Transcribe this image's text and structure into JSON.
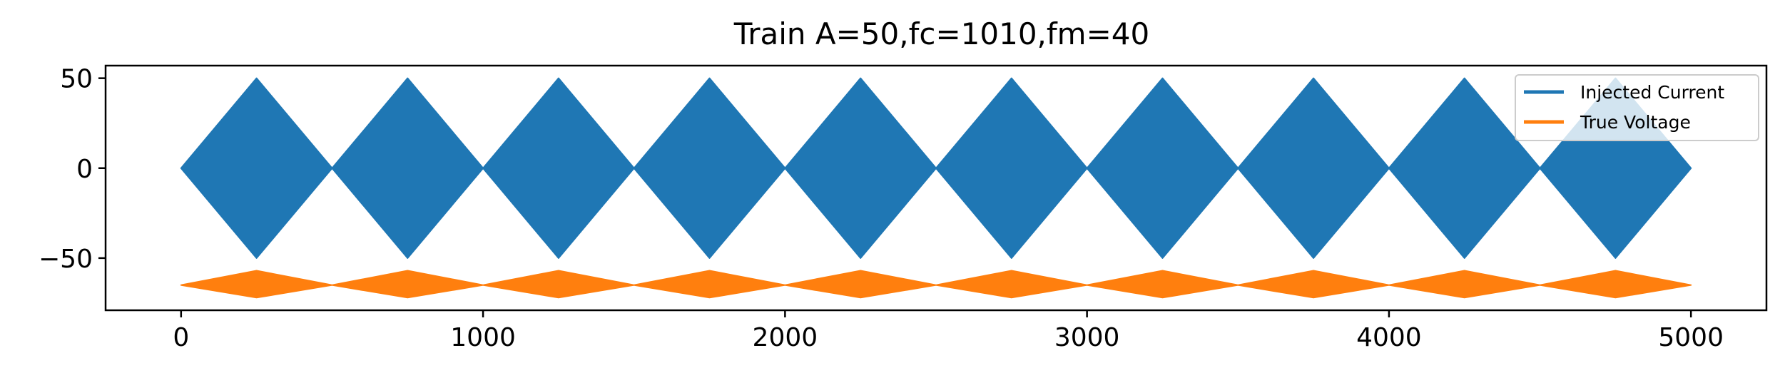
{
  "chart_data": {
    "type": "area",
    "title": "Train A=50,fc=1010,fm=40",
    "xlabel": "",
    "ylabel": "",
    "xlim": [
      -250,
      5250
    ],
    "ylim": [
      -79,
      57
    ],
    "x_ticks": [
      0,
      1000,
      2000,
      3000,
      4000,
      5000
    ],
    "x_tick_labels": [
      "0",
      "1000",
      "2000",
      "3000",
      "4000",
      "5000"
    ],
    "y_ticks": [
      50,
      0,
      -50
    ],
    "y_tick_labels": [
      "50",
      "0",
      "−50"
    ],
    "grid": false,
    "legend_position": "top-right",
    "series": [
      {
        "name": "Injected Current",
        "color": "#1f77b4",
        "kind": "envelope",
        "x": [
          0,
          250,
          500,
          750,
          1000,
          1250,
          1500,
          1750,
          2000,
          2250,
          2500,
          2750,
          3000,
          3250,
          3500,
          3750,
          4000,
          4250,
          4500,
          4750,
          5000
        ],
        "upper": [
          0,
          50,
          0,
          50,
          0,
          50,
          0,
          50,
          0,
          50,
          0,
          50,
          0,
          50,
          0,
          50,
          0,
          50,
          0,
          50,
          0
        ],
        "lower": [
          0,
          -50,
          0,
          -50,
          0,
          -50,
          0,
          -50,
          0,
          -50,
          0,
          -50,
          0,
          -50,
          0,
          -50,
          0,
          -50,
          0,
          -50,
          0
        ]
      },
      {
        "name": "True Voltage",
        "color": "#ff7f0e",
        "kind": "envelope",
        "x": [
          0,
          250,
          500,
          750,
          1000,
          1250,
          1500,
          1750,
          2000,
          2250,
          2500,
          2750,
          3000,
          3250,
          3500,
          3750,
          4000,
          4250,
          4500,
          4750,
          5000
        ],
        "upper": [
          -65,
          -57,
          -65,
          -57,
          -65,
          -57,
          -65,
          -57,
          -65,
          -57,
          -65,
          -57,
          -65,
          -57,
          -65,
          -57,
          -65,
          -57,
          -65,
          -57,
          -65
        ],
        "lower": [
          -65,
          -72,
          -65,
          -72,
          -65,
          -72,
          -65,
          -72,
          -65,
          -72,
          -65,
          -72,
          -65,
          -72,
          -65,
          -72,
          -65,
          -72,
          -65,
          -72,
          -65
        ]
      }
    ]
  }
}
